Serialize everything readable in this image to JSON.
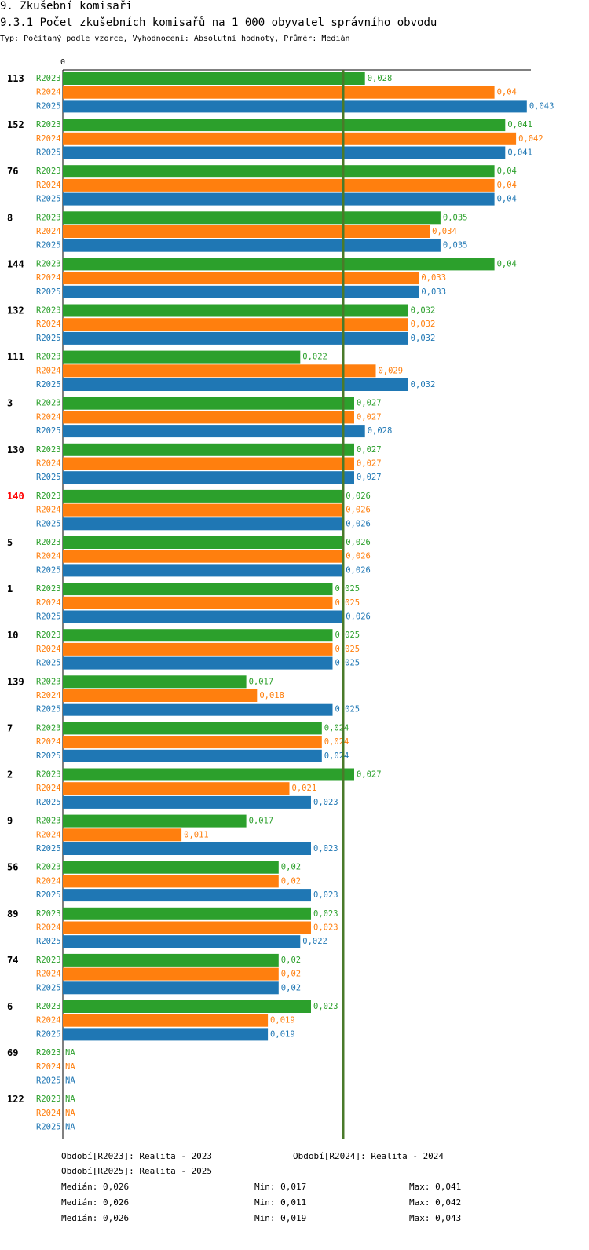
{
  "header": {
    "section_title": "9. Zkušební komisaři",
    "chart_title": "9.3.1 Počet zkušebních komisařů na 1 000 obyvatel správního obvodu",
    "subtitle": "Typ: Počítaný podle vzorce, Vyhodnocení: Absolutní hodnoty, Průměr: Medián"
  },
  "colors": {
    "R2023": "#2ca02c",
    "R2024": "#ff7f0e",
    "R2025": "#1f77b4",
    "median_line": "#4a7a2a",
    "axis": "#000000",
    "highlight": "#ff0000"
  },
  "chart_data": {
    "type": "bar",
    "orientation": "horizontal",
    "title": "9.3.1 Počet zkušebních komisařů na 1 000 obyvatel správního obvodu",
    "x_axis_tick": "0",
    "xlim": [
      0,
      0.043
    ],
    "series_names": [
      "R2023",
      "R2024",
      "R2025"
    ],
    "median_value": 0.026,
    "highlighted_category": "140",
    "categories": [
      "113",
      "152",
      "76",
      "8",
      "144",
      "132",
      "111",
      "3",
      "130",
      "140",
      "5",
      "1",
      "10",
      "139",
      "7",
      "2",
      "9",
      "56",
      "89",
      "74",
      "6",
      "69",
      "122"
    ],
    "series": [
      {
        "name": "R2023",
        "values": [
          0.028,
          0.041,
          0.04,
          0.035,
          0.04,
          0.032,
          0.022,
          0.027,
          0.027,
          0.026,
          0.026,
          0.025,
          0.025,
          0.017,
          0.024,
          0.027,
          0.017,
          0.02,
          0.023,
          0.02,
          0.023,
          null,
          null
        ],
        "labels": [
          "0,028",
          "0,041",
          "0,04",
          "0,035",
          "0,04",
          "0,032",
          "0,022",
          "0,027",
          "0,027",
          "0,026",
          "0,026",
          "0,025",
          "0,025",
          "0,017",
          "0,024",
          "0,027",
          "0,017",
          "0,02",
          "0,023",
          "0,02",
          "0,023",
          "NA",
          "NA"
        ]
      },
      {
        "name": "R2024",
        "values": [
          0.04,
          0.042,
          0.04,
          0.034,
          0.033,
          0.032,
          0.029,
          0.027,
          0.027,
          0.026,
          0.026,
          0.025,
          0.025,
          0.018,
          0.024,
          0.021,
          0.011,
          0.02,
          0.023,
          0.02,
          0.019,
          null,
          null
        ],
        "labels": [
          "0,04",
          "0,042",
          "0,04",
          "0,034",
          "0,033",
          "0,032",
          "0,029",
          "0,027",
          "0,027",
          "0,026",
          "0,026",
          "0,025",
          "0,025",
          "0,018",
          "0,024",
          "0,021",
          "0,011",
          "0,02",
          "0,023",
          "0,02",
          "0,019",
          "NA",
          "NA"
        ]
      },
      {
        "name": "R2025",
        "values": [
          0.043,
          0.041,
          0.04,
          0.035,
          0.033,
          0.032,
          0.032,
          0.028,
          0.027,
          0.026,
          0.026,
          0.026,
          0.025,
          0.025,
          0.024,
          0.023,
          0.023,
          0.023,
          0.022,
          0.02,
          0.019,
          null,
          null
        ],
        "labels": [
          "0,043",
          "0,041",
          "0,04",
          "0,035",
          "0,033",
          "0,032",
          "0,032",
          "0,028",
          "0,027",
          "0,026",
          "0,026",
          "0,026",
          "0,025",
          "0,025",
          "0,024",
          "0,023",
          "0,023",
          "0,023",
          "0,022",
          "0,02",
          "0,019",
          "NA",
          "NA"
        ]
      }
    ]
  },
  "legend": {
    "entries": [
      {
        "series": "R2023",
        "text": "Období[R2023]: Realita - 2023"
      },
      {
        "series": "R2024",
        "text": "Období[R2024]: Realita - 2024"
      },
      {
        "series": "R2025",
        "text": "Období[R2025]: Realita - 2025"
      }
    ],
    "stats": [
      {
        "series": "R2023",
        "median": "Medián: 0,026",
        "min": "Min: 0,017",
        "max": "Max: 0,041"
      },
      {
        "series": "R2024",
        "median": "Medián: 0,026",
        "min": "Min: 0,011",
        "max": "Max: 0,042"
      },
      {
        "series": "R2025",
        "median": "Medián: 0,026",
        "min": "Min: 0,019",
        "max": "Max: 0,043"
      }
    ]
  }
}
